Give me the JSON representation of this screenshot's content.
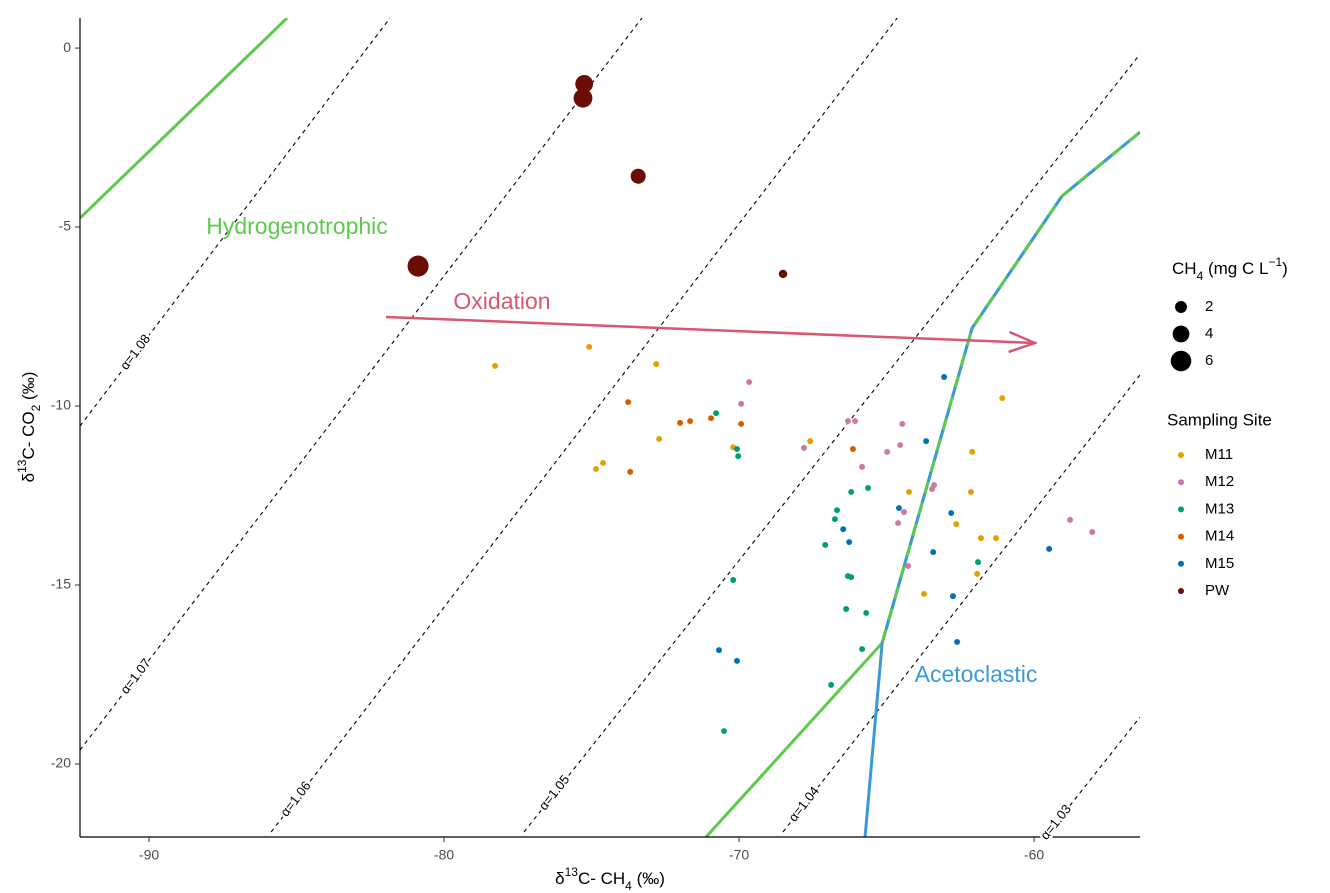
{
  "chart_data": {
    "type": "scatter",
    "xlabel": [
      "δ",
      "13",
      "C- CH",
      "4",
      " (‰)"
    ],
    "ylabel": [
      "δ",
      "13",
      "C- CO",
      "2",
      " (‰)"
    ],
    "xlim": [
      -92.34,
      -56.41
    ],
    "ylim": [
      -22.04,
      0.84
    ],
    "xticks": [
      -90,
      -80,
      -70,
      -60
    ],
    "yticks": [
      0,
      -5,
      -10,
      -15,
      -20
    ],
    "size_legend": {
      "title": [
        "CH",
        "4",
        " (mg C  L",
        "−1",
        ")"
      ],
      "values": [
        2,
        4,
        6
      ]
    },
    "legend_title": "Sampling Site",
    "series": [
      {
        "name": "M11",
        "color": "#E69F00",
        "size": 0.5,
        "x": [
          -78.27,
          -75.08,
          -72.81,
          -74.85,
          -74.61,
          -72.71,
          -70.2,
          -67.59,
          -64.24,
          -62.1,
          -61.08,
          -62.14,
          -61.8,
          -61.29,
          -61.93,
          -63.73,
          -62.64
        ],
        "y": [
          -8.88,
          -8.35,
          -8.83,
          -11.76,
          -11.59,
          -10.92,
          -11.15,
          -10.98,
          -12.4,
          -11.28,
          -9.78,
          -12.4,
          -13.69,
          -13.69,
          -14.69,
          -15.25,
          -13.3
        ]
      },
      {
        "name": "M12",
        "color": "#CC79A7",
        "size": 0.5,
        "x": [
          -69.66,
          -69.93,
          -67.8,
          -66.31,
          -66.07,
          -65.83,
          -64.98,
          -64.47,
          -64.54,
          -64.41,
          -64.61,
          -63.39,
          -63.46,
          -64.27,
          -58.78,
          -58.03
        ],
        "y": [
          -9.33,
          -9.94,
          -11.17,
          -10.42,
          -10.42,
          -11.7,
          -11.28,
          -10.5,
          -11.09,
          -12.96,
          -13.27,
          -12.21,
          -12.32,
          -14.47,
          -13.18,
          -13.52
        ]
      },
      {
        "name": "M13",
        "color": "#009E73",
        "size": 0.5,
        "x": [
          -70.78,
          -70.07,
          -70.03,
          -66.2,
          -65.63,
          -66.68,
          -66.75,
          -67.08,
          -66.31,
          -66.2,
          -66.37,
          -65.69,
          -70.2,
          -65.83,
          -66.88,
          -70.51,
          -61.9
        ],
        "y": [
          -10.2,
          -11.2,
          -11.4,
          -12.4,
          -12.29,
          -12.91,
          -13.16,
          -13.88,
          -14.75,
          -14.78,
          -15.67,
          -15.78,
          -14.86,
          -16.79,
          -17.79,
          -19.08,
          -14.36
        ]
      },
      {
        "name": "M14",
        "color": "#D55E00",
        "size": 0.5,
        "x": [
          -73.76,
          -73.69,
          -72.0,
          -71.66,
          -70.95,
          -69.93,
          -66.14
        ],
        "y": [
          -9.89,
          -11.84,
          -10.47,
          -10.42,
          -10.34,
          -10.5,
          -11.2
        ]
      },
      {
        "name": "M15",
        "color": "#0072B2",
        "size": 0.5,
        "x": [
          -63.05,
          -63.66,
          -64.58,
          -62.81,
          -63.42,
          -66.47,
          -66.27,
          -62.75,
          -62.61,
          -59.49,
          -70.68,
          -70.07
        ],
        "y": [
          -9.19,
          -10.98,
          -12.85,
          -12.99,
          -14.08,
          -13.44,
          -13.8,
          -15.31,
          -16.59,
          -13.99,
          -16.82,
          -17.12
        ]
      },
      {
        "name": "PW",
        "color": "#6B0C05",
        "x": [
          -75.25,
          -75.29,
          -73.42,
          -80.88,
          -68.51
        ],
        "y": [
          -1.0,
          -1.4,
          -3.58,
          -6.09,
          -6.31
        ],
        "sizes": [
          4.5,
          5.0,
          3.2,
          6.3,
          1.0
        ]
      }
    ],
    "reference_lines": [
      {
        "label": "α=1.08",
        "x": [
          -92.34,
          -81.83
        ],
        "y": [
          -10.56,
          0.84
        ]
      },
      {
        "label": "α=1.07",
        "x": [
          -92.34,
          -73.29
        ],
        "y": [
          -19.61,
          0.84
        ]
      },
      {
        "label": "α=1.06",
        "x": [
          -85.86,
          -64.64
        ],
        "y": [
          -21.9,
          0.84
        ]
      },
      {
        "label": "α=1.05",
        "x": [
          -77.29,
          -56.41
        ],
        "y": [
          -21.9,
          -0.17
        ]
      },
      {
        "label": "α=1.04",
        "x": [
          -68.51,
          -56.41
        ],
        "y": [
          -21.9,
          -9.13
        ]
      },
      {
        "label": "α=1.03",
        "x": [
          -59.63,
          -56.41
        ],
        "y": [
          -22.04,
          -18.69
        ]
      }
    ],
    "boundaries": [
      {
        "label": "Hydrogenotrophic",
        "color": "#5DC94D",
        "paths": [
          {
            "x": [
              -92.34,
              -85.32
            ],
            "y": [
              -4.75,
              0.84
            ]
          },
          {
            "x": [
              -71.12,
              -65.15,
              -62.1,
              -59.05,
              -56.41
            ],
            "y": [
              -22.04,
              -16.62,
              -7.82,
              -4.13,
              -2.35
            ]
          }
        ]
      },
      {
        "label": "Acetoclastic",
        "color": "#3A9AD9",
        "paths": [
          {
            "x": [
              -65.73,
              -65.15,
              -62.1,
              -59.05,
              -56.41
            ],
            "y": [
              -22.04,
              -16.62,
              -7.82,
              -4.13,
              -2.35
            ]
          }
        ]
      }
    ],
    "annotation": "Oxidation"
  }
}
